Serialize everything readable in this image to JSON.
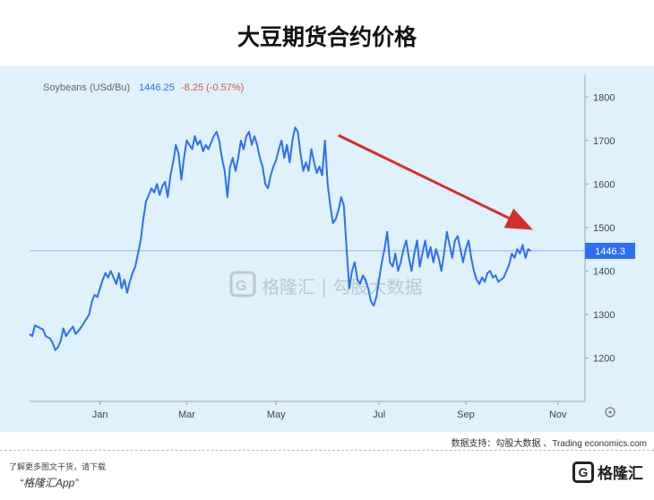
{
  "page": {
    "title": "大豆期货合约价格",
    "source": "数据支持：勾股大数据 、Trading economics.com",
    "download_prompt": "了解更多图文干货，请下载",
    "app_name": "“格隆汇App”",
    "logo_text": "格隆汇"
  },
  "chart_data": {
    "type": "line",
    "ticker": "Soybeans (USd/Bu)",
    "last_price": "1446.25",
    "change": "-8.25 (-0.57%)",
    "price_tag": "1446.3",
    "reference_line": 1446.3,
    "ylim": [
      1100,
      1850
    ],
    "y_ticks": [
      1200,
      1300,
      1400,
      1500,
      1600,
      1700,
      1800
    ],
    "x_ticks": [
      {
        "label": "Jan",
        "t": 2.6
      },
      {
        "label": "Mar",
        "t": 5.8
      },
      {
        "label": "May",
        "t": 9.1
      },
      {
        "label": "Jul",
        "t": 12.9
      },
      {
        "label": "Sep",
        "t": 16.1
      },
      {
        "label": "Nov",
        "t": 19.5
      }
    ],
    "grid": false,
    "colors": {
      "line": "#2e6ff2",
      "change": "#d9534f",
      "ticker": "#666666",
      "tag_bg": "#2e6ff2"
    },
    "series": [
      {
        "points": [
          [
            0.0,
            1255
          ],
          [
            0.1,
            1250
          ],
          [
            0.2,
            1275
          ],
          [
            0.35,
            1270
          ],
          [
            0.5,
            1265
          ],
          [
            0.6,
            1250
          ],
          [
            0.75,
            1245
          ],
          [
            0.85,
            1235
          ],
          [
            0.95,
            1218
          ],
          [
            1.05,
            1225
          ],
          [
            1.15,
            1240
          ],
          [
            1.25,
            1268
          ],
          [
            1.35,
            1250
          ],
          [
            1.45,
            1260
          ],
          [
            1.6,
            1272
          ],
          [
            1.7,
            1255
          ],
          [
            1.8,
            1262
          ],
          [
            1.95,
            1275
          ],
          [
            2.1,
            1290
          ],
          [
            2.2,
            1300
          ],
          [
            2.3,
            1330
          ],
          [
            2.4,
            1345
          ],
          [
            2.5,
            1340
          ],
          [
            2.6,
            1360
          ],
          [
            2.7,
            1380
          ],
          [
            2.8,
            1395
          ],
          [
            2.9,
            1385
          ],
          [
            3.0,
            1400
          ],
          [
            3.1,
            1385
          ],
          [
            3.2,
            1370
          ],
          [
            3.3,
            1395
          ],
          [
            3.4,
            1360
          ],
          [
            3.5,
            1380
          ],
          [
            3.6,
            1350
          ],
          [
            3.7,
            1375
          ],
          [
            3.8,
            1395
          ],
          [
            3.9,
            1410
          ],
          [
            4.0,
            1440
          ],
          [
            4.1,
            1470
          ],
          [
            4.2,
            1520
          ],
          [
            4.3,
            1560
          ],
          [
            4.4,
            1575
          ],
          [
            4.5,
            1590
          ],
          [
            4.6,
            1580
          ],
          [
            4.7,
            1600
          ],
          [
            4.8,
            1575
          ],
          [
            4.9,
            1595
          ],
          [
            5.0,
            1605
          ],
          [
            5.1,
            1570
          ],
          [
            5.2,
            1620
          ],
          [
            5.3,
            1650
          ],
          [
            5.4,
            1690
          ],
          [
            5.5,
            1670
          ],
          [
            5.6,
            1610
          ],
          [
            5.7,
            1660
          ],
          [
            5.8,
            1700
          ],
          [
            5.9,
            1690
          ],
          [
            6.0,
            1680
          ],
          [
            6.1,
            1710
          ],
          [
            6.2,
            1690
          ],
          [
            6.3,
            1700
          ],
          [
            6.4,
            1675
          ],
          [
            6.5,
            1690
          ],
          [
            6.6,
            1680
          ],
          [
            6.7,
            1695
          ],
          [
            6.8,
            1710
          ],
          [
            6.9,
            1720
          ],
          [
            7.0,
            1700
          ],
          [
            7.1,
            1660
          ],
          [
            7.2,
            1630
          ],
          [
            7.3,
            1570
          ],
          [
            7.4,
            1640
          ],
          [
            7.5,
            1660
          ],
          [
            7.6,
            1630
          ],
          [
            7.7,
            1660
          ],
          [
            7.8,
            1700
          ],
          [
            7.9,
            1680
          ],
          [
            8.0,
            1710
          ],
          [
            8.1,
            1720
          ],
          [
            8.2,
            1690
          ],
          [
            8.3,
            1710
          ],
          [
            8.4,
            1690
          ],
          [
            8.5,
            1660
          ],
          [
            8.6,
            1640
          ],
          [
            8.7,
            1600
          ],
          [
            8.8,
            1590
          ],
          [
            8.9,
            1620
          ],
          [
            9.0,
            1640
          ],
          [
            9.1,
            1655
          ],
          [
            9.2,
            1680
          ],
          [
            9.3,
            1700
          ],
          [
            9.4,
            1660
          ],
          [
            9.5,
            1690
          ],
          [
            9.6,
            1650
          ],
          [
            9.7,
            1700
          ],
          [
            9.8,
            1730
          ],
          [
            9.9,
            1720
          ],
          [
            10.0,
            1670
          ],
          [
            10.1,
            1630
          ],
          [
            10.2,
            1650
          ],
          [
            10.3,
            1630
          ],
          [
            10.4,
            1680
          ],
          [
            10.5,
            1650
          ],
          [
            10.6,
            1625
          ],
          [
            10.7,
            1640
          ],
          [
            10.8,
            1620
          ],
          [
            10.9,
            1700
          ],
          [
            11.0,
            1600
          ],
          [
            11.1,
            1550
          ],
          [
            11.2,
            1510
          ],
          [
            11.3,
            1520
          ],
          [
            11.4,
            1540
          ],
          [
            11.5,
            1570
          ],
          [
            11.6,
            1550
          ],
          [
            11.7,
            1450
          ],
          [
            11.8,
            1360
          ],
          [
            11.9,
            1400
          ],
          [
            12.0,
            1420
          ],
          [
            12.1,
            1380
          ],
          [
            12.2,
            1370
          ],
          [
            12.3,
            1390
          ],
          [
            12.4,
            1380
          ],
          [
            12.5,
            1360
          ],
          [
            12.6,
            1330
          ],
          [
            12.7,
            1320
          ],
          [
            12.8,
            1340
          ],
          [
            12.9,
            1380
          ],
          [
            13.0,
            1420
          ],
          [
            13.1,
            1450
          ],
          [
            13.2,
            1490
          ],
          [
            13.3,
            1420
          ],
          [
            13.4,
            1410
          ],
          [
            13.5,
            1440
          ],
          [
            13.6,
            1400
          ],
          [
            13.7,
            1420
          ],
          [
            13.8,
            1450
          ],
          [
            13.9,
            1470
          ],
          [
            14.0,
            1430
          ],
          [
            14.1,
            1400
          ],
          [
            14.2,
            1440
          ],
          [
            14.3,
            1470
          ],
          [
            14.4,
            1410
          ],
          [
            14.5,
            1440
          ],
          [
            14.6,
            1470
          ],
          [
            14.7,
            1430
          ],
          [
            14.8,
            1455
          ],
          [
            14.9,
            1420
          ],
          [
            15.0,
            1450
          ],
          [
            15.1,
            1430
          ],
          [
            15.2,
            1400
          ],
          [
            15.3,
            1440
          ],
          [
            15.4,
            1490
          ],
          [
            15.5,
            1460
          ],
          [
            15.6,
            1430
          ],
          [
            15.7,
            1470
          ],
          [
            15.8,
            1480
          ],
          [
            15.9,
            1450
          ],
          [
            16.0,
            1420
          ],
          [
            16.1,
            1450
          ],
          [
            16.2,
            1470
          ],
          [
            16.3,
            1430
          ],
          [
            16.4,
            1400
          ],
          [
            16.5,
            1380
          ],
          [
            16.6,
            1370
          ],
          [
            16.7,
            1385
          ],
          [
            16.8,
            1375
          ],
          [
            16.9,
            1395
          ],
          [
            17.0,
            1400
          ],
          [
            17.1,
            1385
          ],
          [
            17.2,
            1390
          ],
          [
            17.3,
            1375
          ],
          [
            17.4,
            1380
          ],
          [
            17.5,
            1385
          ],
          [
            17.6,
            1400
          ],
          [
            17.7,
            1415
          ],
          [
            17.8,
            1440
          ],
          [
            17.9,
            1430
          ],
          [
            18.0,
            1450
          ],
          [
            18.1,
            1440
          ],
          [
            18.2,
            1460
          ],
          [
            18.3,
            1430
          ],
          [
            18.4,
            1450
          ],
          [
            18.5,
            1446
          ]
        ]
      }
    ],
    "annotation_arrow": {
      "from": [
        11.4,
        1712
      ],
      "to": [
        18.4,
        1500
      ]
    },
    "watermark": "格隆汇 | 勾股大数据"
  }
}
